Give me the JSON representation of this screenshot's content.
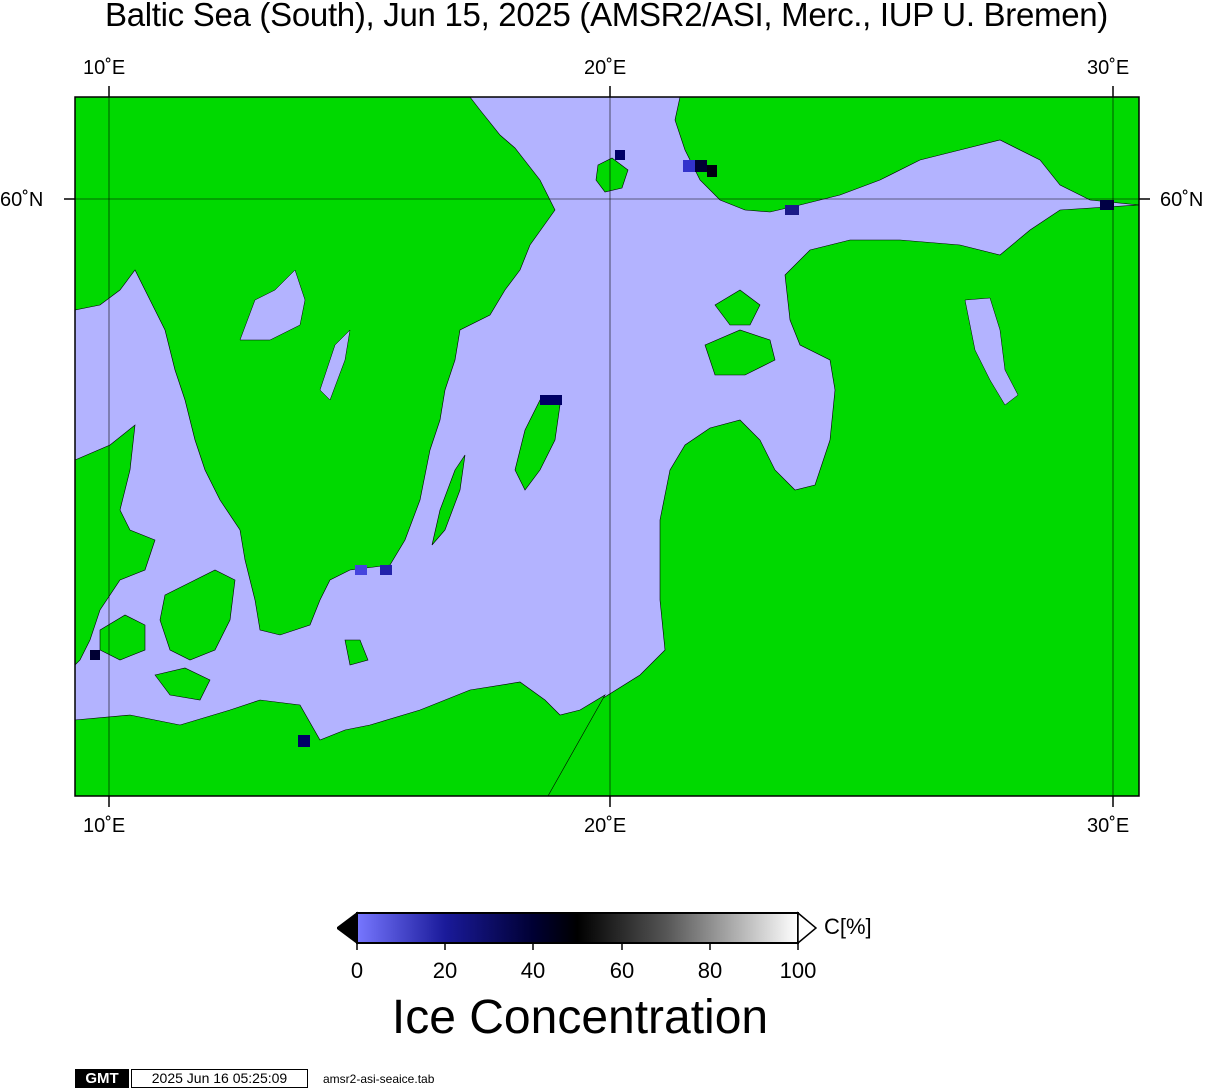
{
  "title": "Baltic Sea (South), Jun 15, 2025 (AMSR2/ASI, Merc., IUP U. Bremen)",
  "map": {
    "graticule": {
      "lon_labels": [
        "10˚E",
        "20˚E",
        "30˚E"
      ],
      "lat_labels": [
        "60˚N"
      ]
    },
    "colors": {
      "land": "#00d900",
      "open_water": "#b3b3ff",
      "no_data_land": "#808080",
      "border": "#000000"
    }
  },
  "colorbar": {
    "unit": "C[%]",
    "ticks": [
      "0",
      "20",
      "40",
      "60",
      "80",
      "100"
    ],
    "label": "Ice Concentration",
    "gradient": [
      {
        "value": 0,
        "color": "#7777ff"
      },
      {
        "value": 20,
        "color": "#1a1a9a"
      },
      {
        "value": 40,
        "color": "#000033"
      },
      {
        "value": 50,
        "color": "#000000"
      },
      {
        "value": 70,
        "color": "#555555"
      },
      {
        "value": 100,
        "color": "#ffffff"
      }
    ]
  },
  "footer": {
    "logo": "GMT",
    "timestamp": "2025 Jun 16 05:25:09",
    "filename": "amsr2-asi-seaice.tab"
  }
}
